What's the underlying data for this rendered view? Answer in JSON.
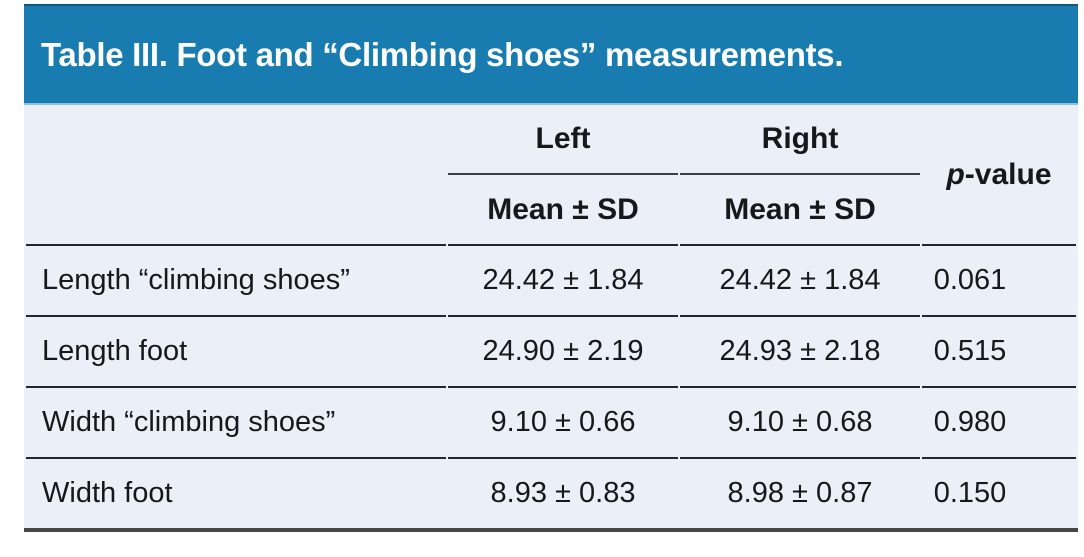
{
  "title": "Table III. Foot and “Climbing shoes” measurements.",
  "colors": {
    "header_bg": "#187cb0",
    "header_top_edge": "#11567d",
    "header_bottom_edge": "#8ec2dc",
    "panel_bg": "#ebeff7",
    "line": "#24262b",
    "spanner_line": "#3c3e43",
    "bottom_border": "#474747",
    "text": "#17181b"
  },
  "header": {
    "group_columns": [
      "Left",
      "Right"
    ],
    "sub_labels": [
      "Mean ± SD",
      "Mean ± SD"
    ],
    "pvalue_italic": "p",
    "pvalue_rest": "-value"
  },
  "rows": [
    {
      "label": "Length “climbing shoes”",
      "left": "24.42 ± 1.84",
      "right": "24.42 ± 1.84",
      "p": "0.061"
    },
    {
      "label": "Length foot",
      "left": "24.90 ± 2.19",
      "right": "24.93 ± 2.18",
      "p": "0.515"
    },
    {
      "label": "Width “climbing shoes”",
      "left": "9.10 ± 0.66",
      "right": "9.10 ± 0.68",
      "p": "0.980"
    },
    {
      "label": "Width foot",
      "left": "8.93 ± 0.83",
      "right": "8.98 ± 0.87",
      "p": "0.150"
    }
  ]
}
